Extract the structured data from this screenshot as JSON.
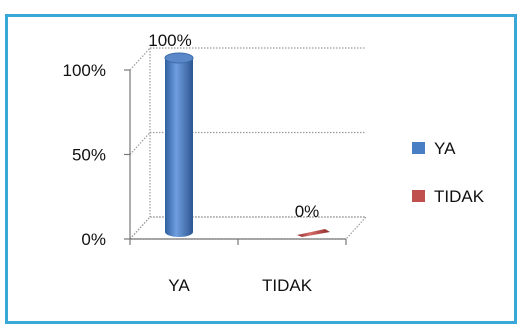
{
  "title": "",
  "colors": {
    "frame": "#39a8d6",
    "ya": "#4a7ec4",
    "tidak": "#c0504d"
  },
  "chart_data": {
    "type": "bar",
    "categories": [
      "YA",
      "TIDAK"
    ],
    "series": [
      {
        "name": "YA",
        "values": [
          100,
          null
        ],
        "color": "#4a7ec4"
      },
      {
        "name": "TIDAK",
        "values": [
          null,
          0
        ],
        "color": "#c0504d"
      }
    ],
    "value_labels": [
      "100%",
      "0%"
    ],
    "ylim": [
      0,
      100
    ],
    "yticks": [
      {
        "value": 0,
        "label": "0%"
      },
      {
        "value": 50,
        "label": "50%"
      },
      {
        "value": 100,
        "label": "100%"
      }
    ],
    "grid": true,
    "legend": {
      "position": "right",
      "entries": [
        "YA",
        "TIDAK"
      ]
    },
    "style": "3d-cylinder"
  }
}
